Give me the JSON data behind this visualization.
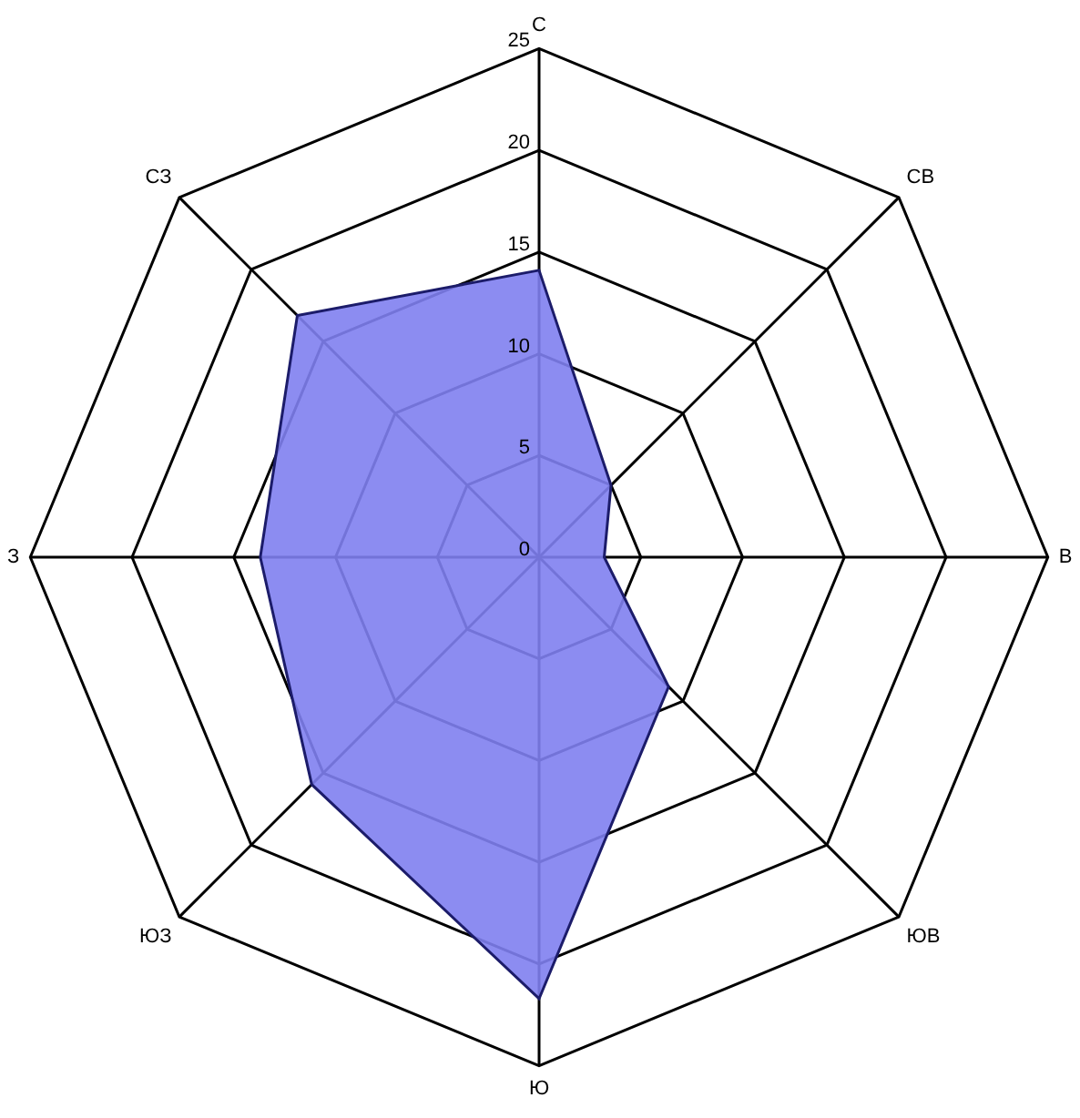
{
  "chart_data": {
    "type": "radar",
    "categories": [
      "С",
      "СВ",
      "В",
      "ЮВ",
      "Ю",
      "ЮЗ",
      "З",
      "СЗ"
    ],
    "series": [
      {
        "color": "#8080f0",
        "values": [
          14.1,
          5.0,
          3.2,
          9.0,
          21.7,
          15.8,
          13.7,
          16.8
        ]
      }
    ],
    "ylim": [
      0,
      25
    ],
    "yticks": [
      0,
      5,
      10,
      15,
      20,
      25
    ],
    "grid": true,
    "legend": false,
    "marker": "none"
  }
}
